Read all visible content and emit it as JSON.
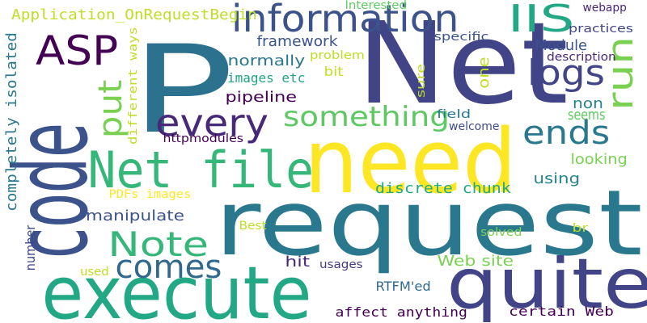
{
  "words": [
    {
      "text": "P",
      "color": "#2c728e"
    },
    {
      "text": "Net",
      "color": "#414487"
    },
    {
      "text": "need",
      "color": "#fde725"
    },
    {
      "text": "request",
      "color": "#2a788e"
    },
    {
      "text": "code",
      "color": "#3b528b"
    },
    {
      "text": "execute",
      "color": "#22a884"
    },
    {
      "text": "quite",
      "color": "#414487"
    },
    {
      "text": "Net file",
      "color": "#35b779"
    },
    {
      "text": "information",
      "color": "#3b528b"
    },
    {
      "text": "ASP",
      "color": "#440154"
    },
    {
      "text": "IIS",
      "color": "#22a884"
    },
    {
      "text": "logs",
      "color": "#414487"
    },
    {
      "text": "run",
      "color": "#7ad151"
    },
    {
      "text": "every",
      "color": "#482878"
    },
    {
      "text": "something",
      "color": "#5ec962"
    },
    {
      "text": "ends",
      "color": "#2a788e"
    },
    {
      "text": "Note",
      "color": "#35b779"
    },
    {
      "text": "comes",
      "color": "#31688e"
    },
    {
      "text": "put",
      "color": "#7ad151"
    },
    {
      "text": "Application_OnRequestBegin",
      "color": "#bddf26"
    },
    {
      "text": "framework",
      "color": "#3b528b"
    },
    {
      "text": "normally",
      "color": "#2a788e"
    },
    {
      "text": "images etc",
      "color": "#20a486"
    },
    {
      "text": "pipeline",
      "color": "#440154"
    },
    {
      "text": "Module",
      "color": "#3b528b"
    },
    {
      "text": "bit",
      "color": "#bddf26"
    },
    {
      "text": "one",
      "color": "#bddf26"
    },
    {
      "text": "non",
      "color": "#26828e"
    },
    {
      "text": "seems",
      "color": "#5ec962"
    },
    {
      "text": "looking",
      "color": "#7ad151"
    },
    {
      "text": "using",
      "color": "#26828e"
    },
    {
      "text": "discrete chunk",
      "color": "#22a884"
    },
    {
      "text": "completely isolated",
      "color": "#2a788e"
    },
    {
      "text": "different ways",
      "color": "#bddf26"
    },
    {
      "text": "PDFs images",
      "color": "#fde725"
    },
    {
      "text": "manipulate",
      "color": "#3b528b"
    },
    {
      "text": "number",
      "color": "#3e4a89"
    },
    {
      "text": "hit",
      "color": "#482878"
    },
    {
      "text": "usages",
      "color": "#443983"
    },
    {
      "text": "Web site",
      "color": "#7ad151"
    },
    {
      "text": "RTFM'ed",
      "color": "#31688e"
    },
    {
      "text": "affect anything",
      "color": "#440154"
    },
    {
      "text": "certain Web",
      "color": "#440154"
    },
    {
      "text": "Interested",
      "color": "#5ec962"
    },
    {
      "text": "webapp",
      "color": "#482878"
    },
    {
      "text": "specific",
      "color": "#3b528b"
    },
    {
      "text": "practices",
      "color": "#414487"
    },
    {
      "text": "problem",
      "color": "#bddf26"
    },
    {
      "text": "description",
      "color": "#482878"
    },
    {
      "text": "sure",
      "color": "#bddf26"
    },
    {
      "text": "field",
      "color": "#2a788e"
    },
    {
      "text": "welcome",
      "color": "#3e4a89"
    },
    {
      "text": "httpmodules",
      "color": "#440154"
    },
    {
      "text": "Best",
      "color": "#bddf26"
    },
    {
      "text": "solved",
      "color": "#7ad151"
    },
    {
      "text": "br",
      "color": "#bddf26"
    },
    {
      "text": "used",
      "color": "#bddf26"
    }
  ]
}
